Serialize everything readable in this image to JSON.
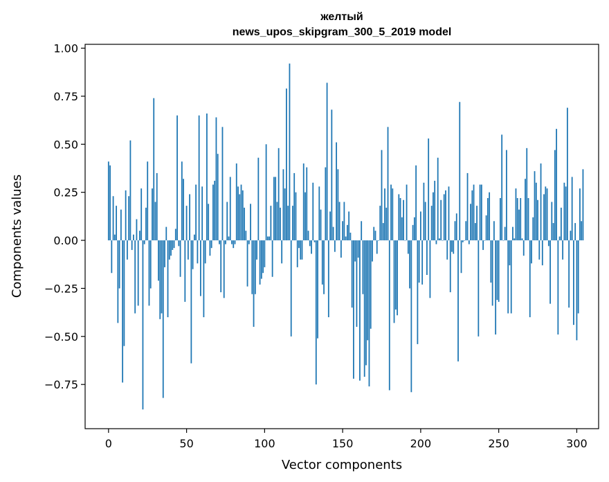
{
  "chart_data": {
    "type": "bar",
    "title_lines": [
      "желтый",
      "news_upos_skipgram_300_5_2019 model"
    ],
    "xlabel": "Vector components",
    "ylabel": "Components values",
    "xlim": [
      -15,
      314
    ],
    "ylim": [
      -0.98,
      1.02
    ],
    "xticks": [
      0,
      50,
      100,
      150,
      200,
      250,
      300
    ],
    "yticks": [
      -0.75,
      -0.5,
      -0.25,
      0.0,
      0.25,
      0.5,
      0.75,
      1.0
    ],
    "ytick_labels": [
      "−0.75",
      "−0.50",
      "−0.25",
      "0.00",
      "0.25",
      "0.50",
      "0.75",
      "1.00"
    ],
    "bar_color": "#1f77b4",
    "grid": false,
    "values": [
      0.41,
      0.39,
      -0.17,
      0.23,
      0.03,
      0.18,
      -0.43,
      -0.25,
      0.16,
      -0.74,
      -0.55,
      0.26,
      -0.1,
      0.23,
      0.52,
      -0.05,
      0.03,
      -0.38,
      0.11,
      -0.34,
      0.05,
      0.27,
      -0.88,
      -0.02,
      0.17,
      0.41,
      -0.34,
      -0.25,
      0.27,
      0.74,
      0.2,
      0.35,
      -0.21,
      -0.41,
      -0.38,
      -0.82,
      -0.14,
      0.07,
      -0.4,
      -0.1,
      -0.08,
      -0.05,
      -0.04,
      0.06,
      0.65,
      -0.03,
      -0.19,
      0.41,
      0.32,
      -0.32,
      0.18,
      -0.1,
      0.24,
      -0.64,
      -0.15,
      0.03,
      0.29,
      -0.12,
      0.65,
      -0.29,
      0.28,
      -0.4,
      -0.12,
      0.66,
      0.19,
      -0.08,
      -0.04,
      0.29,
      0.31,
      0.64,
      0.45,
      -0.02,
      -0.27,
      0.59,
      -0.3,
      -0.02,
      0.2,
      0.02,
      0.33,
      -0.02,
      -0.04,
      -0.02,
      0.4,
      0.28,
      0.24,
      0.29,
      0.26,
      0.17,
      0.05,
      -0.24,
      -0.02,
      0.19,
      -0.28,
      -0.45,
      -0.28,
      -0.1,
      0.43,
      -0.23,
      -0.2,
      -0.17,
      -0.14,
      0.5,
      0.02,
      0.02,
      0.18,
      -0.19,
      0.33,
      0.33,
      0.2,
      0.48,
      0.17,
      -0.12,
      0.37,
      0.27,
      0.79,
      0.18,
      0.92,
      -0.5,
      0.18,
      0.35,
      0.25,
      -0.14,
      -0.04,
      -0.1,
      -0.1,
      0.4,
      0.25,
      0.38,
      0.05,
      -0.03,
      -0.07,
      0.3,
      -0.01,
      -0.75,
      -0.51,
      0.28,
      0.16,
      -0.23,
      -0.28,
      0.38,
      0.82,
      -0.4,
      0.15,
      0.68,
      0.07,
      -0.06,
      0.51,
      0.37,
      0.2,
      -0.09,
      0.1,
      0.2,
      0.02,
      0.08,
      0.15,
      0.04,
      -0.35,
      -0.72,
      -0.11,
      -0.45,
      -0.09,
      -0.73,
      0.1,
      -0.28,
      -0.71,
      -0.65,
      -0.52,
      -0.76,
      -0.46,
      -0.11,
      0.07,
      0.05,
      -0.07,
      0.0,
      0.18,
      0.47,
      0.09,
      0.27,
      0.17,
      0.59,
      -0.78,
      0.29,
      0.27,
      -0.43,
      -0.36,
      -0.39,
      0.24,
      0.22,
      0.12,
      0.21,
      0.0,
      0.29,
      -0.07,
      -0.25,
      -0.79,
      0.08,
      0.12,
      0.39,
      -0.54,
      -0.22,
      0.15,
      -0.23,
      0.3,
      0.2,
      -0.18,
      0.53,
      -0.3,
      0.18,
      0.25,
      0.31,
      -0.02,
      0.43,
      0.01,
      0.21,
      0.0,
      0.24,
      0.26,
      -0.1,
      0.28,
      -0.27,
      -0.06,
      -0.07,
      0.1,
      0.14,
      -0.63,
      0.72,
      -0.17,
      -0.01,
      0.0,
      0.1,
      0.35,
      -0.02,
      0.19,
      0.26,
      0.29,
      0.09,
      0.18,
      -0.5,
      0.29,
      0.29,
      -0.05,
      0.0,
      0.13,
      0.22,
      0.25,
      -0.22,
      -0.34,
      0.1,
      -0.49,
      -0.31,
      -0.32,
      0.22,
      0.55,
      0.0,
      0.07,
      0.47,
      -0.38,
      -0.13,
      -0.38,
      0.07,
      0.01,
      0.27,
      0.22,
      0.16,
      0.22,
      0.01,
      -0.08,
      0.32,
      0.48,
      0.22,
      -0.4,
      -0.12,
      0.12,
      0.36,
      0.3,
      0.21,
      -0.1,
      0.4,
      -0.13,
      0.24,
      0.28,
      0.27,
      -0.03,
      -0.33,
      0.2,
      0.09,
      0.47,
      0.58,
      -0.49,
      0.02,
      0.17,
      -0.1,
      0.3,
      0.28,
      0.69,
      -0.35,
      0.05,
      0.33,
      -0.44,
      0.09,
      -0.52,
      -0.38,
      0.27,
      0.1,
      0.37
    ]
  }
}
